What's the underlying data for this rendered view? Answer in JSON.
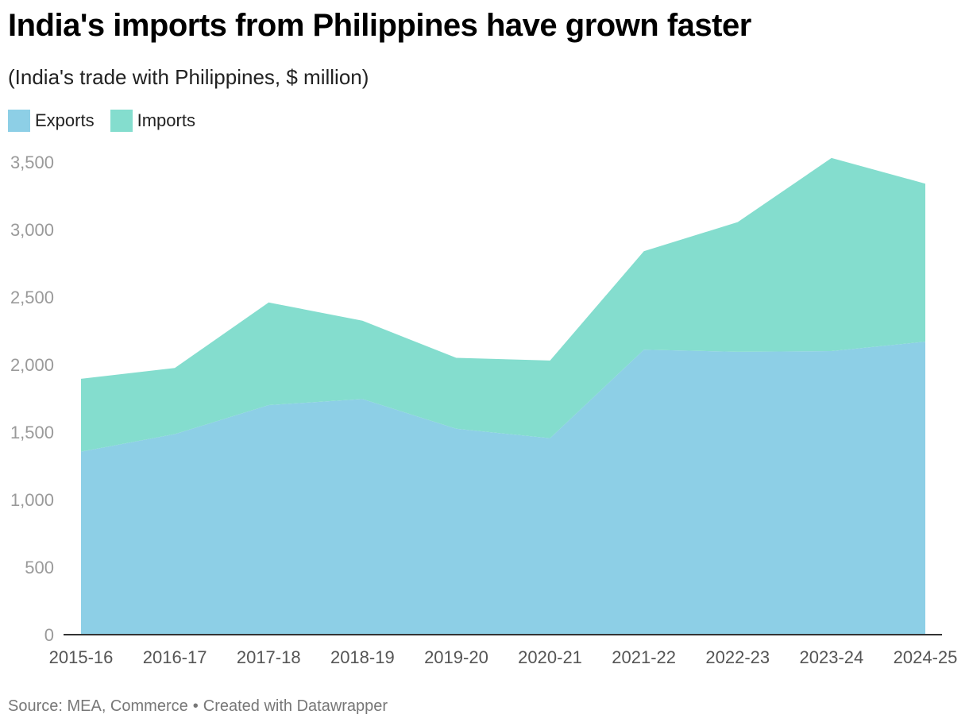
{
  "header": {
    "title": "India's imports from Philippines have grown faster",
    "subtitle": "(India's trade with Philippines, $ million)"
  },
  "legend": [
    {
      "label": "Exports",
      "color": "#8dcfe6"
    },
    {
      "label": "Imports",
      "color": "#84ddce"
    }
  ],
  "footer": {
    "source": "Source: MEA, Commerce",
    "separator": "•",
    "credit": "Created with Datawrapper"
  },
  "chart_data": {
    "type": "area",
    "stacked": true,
    "categories": [
      "2015-16",
      "2016-17",
      "2017-18",
      "2018-19",
      "2019-20",
      "2020-21",
      "2021-22",
      "2022-23",
      "2023-24",
      "2024-25"
    ],
    "series": [
      {
        "name": "Exports",
        "color": "#8dcfe6",
        "values": [
          1355,
          1485,
          1700,
          1745,
          1525,
          1455,
          2110,
          2095,
          2100,
          2170
        ]
      },
      {
        "name": "Imports",
        "color": "#84ddce",
        "values": [
          540,
          490,
          760,
          580,
          525,
          575,
          730,
          960,
          1430,
          1170
        ]
      }
    ],
    "ylim": [
      0,
      3500
    ],
    "yticks": [
      0,
      500,
      1000,
      1500,
      2000,
      2500,
      3000,
      3500
    ],
    "ytick_labels": [
      "0",
      "500",
      "1,000",
      "1,500",
      "2,000",
      "2,500",
      "3,000",
      "3,500"
    ],
    "xlabel": "",
    "ylabel": "",
    "grid": false,
    "legend_position": "top-left"
  }
}
